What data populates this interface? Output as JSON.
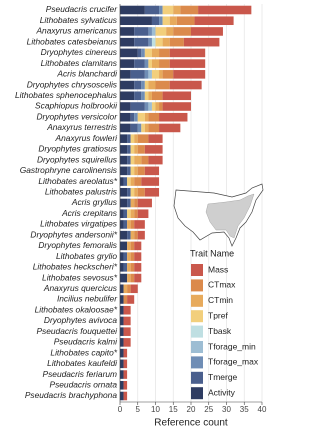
{
  "chart_data": {
    "type": "stacked_barh",
    "x_label": "Reference count",
    "legend_title": "Trait Name",
    "xlim": [
      0,
      40
    ],
    "xticks": [
      0,
      5,
      10,
      15,
      20,
      25,
      30,
      35,
      40
    ],
    "grid": true,
    "categories": [
      "Pseudacris crucifer",
      "Lithobates sylvaticus",
      "Anaxyrus americanus",
      "Lithobates catesbeianus",
      "Dryophytes cinereus",
      "Lithobates clamitans",
      "Acris blanchardi",
      "Dryophytes chrysoscelis",
      "Lithobates sphenocephalus",
      "Scaphiopus holbrookii",
      "Dryophytes versicolor",
      "Anaxyrus terrestris",
      "Anaxyrus fowleri",
      "Dryophytes gratiosus",
      "Dryophytes squirellus",
      "Gastrophryne carolinensis",
      "Lithobates areolatus*",
      "Lithobates palustris",
      "Acris gryllus",
      "Acris crepitans",
      "Lithobates virgatipes",
      "Dryophytes andersonii*",
      "Dryophytes femoralis",
      "Lithobates grylio",
      "Lithobates heckscheri*",
      "Lithobates sevosus*",
      "Anaxyrus quercicus",
      "Incilius nebulifer",
      "Lithobates okaloosae*",
      "Dryophytes avivoca",
      "Pseudacris fouquettei",
      "Pseudacris kalmi",
      "Lithobates capito*",
      "Lithobates kaufeldi",
      "Pseudacris feriarum",
      "Pseudacris ornata",
      "Pseudacris brachyphona"
    ],
    "series": [
      {
        "name": "Activity",
        "color": "#2e3c62",
        "values": [
          7,
          9,
          4,
          4,
          5,
          4,
          3,
          4,
          4,
          3,
          3,
          3,
          2,
          2,
          2,
          2,
          1,
          2,
          2,
          1,
          1,
          2,
          2,
          1,
          1,
          2,
          1,
          1,
          1,
          1,
          1,
          1,
          1,
          1,
          1,
          1,
          1
        ]
      },
      {
        "name": "Tmerge",
        "color": "#4a5f8d",
        "values": [
          4,
          2,
          4,
          4,
          1,
          3,
          4,
          2,
          2,
          4,
          1,
          2,
          1,
          1,
          1,
          1,
          1,
          1,
          1,
          1,
          1,
          1,
          0,
          1,
          1,
          0,
          0,
          0,
          0,
          0,
          0,
          0,
          0,
          0,
          0,
          0,
          0
        ]
      },
      {
        "name": "Tforage_max",
        "color": "#6f8db5",
        "values": [
          1,
          1,
          1,
          1,
          1,
          1,
          1,
          1,
          1,
          1,
          1,
          1,
          0,
          0,
          0,
          0,
          0,
          0,
          0,
          0,
          0,
          0,
          0,
          0,
          0,
          0,
          0,
          0,
          0,
          0,
          0,
          0,
          0,
          0,
          0,
          0,
          0
        ]
      },
      {
        "name": "Tforage_min",
        "color": "#9dbdd3",
        "values": [
          0,
          0,
          1,
          0,
          0,
          0,
          1,
          0,
          0,
          1,
          0,
          0,
          0,
          0,
          0,
          0,
          0,
          0,
          0,
          0,
          0,
          0,
          0,
          0,
          0,
          0,
          0,
          0,
          0,
          0,
          0,
          0,
          0,
          0,
          0,
          0,
          0
        ]
      },
      {
        "name": "Tbask",
        "color": "#bfdfe2",
        "values": [
          0,
          0,
          0,
          1,
          0,
          0,
          0,
          0,
          0,
          0,
          0,
          0,
          0,
          0,
          0,
          0,
          0,
          0,
          0,
          0,
          0,
          0,
          0,
          0,
          0,
          0,
          0,
          0,
          0,
          0,
          0,
          0,
          0,
          0,
          0,
          0,
          0
        ]
      },
      {
        "name": "Tpref",
        "color": "#f2cf7c",
        "values": [
          3,
          2,
          3,
          2,
          2,
          1,
          2,
          1,
          1,
          1,
          2,
          1,
          1,
          1,
          1,
          1,
          1,
          1,
          0,
          1,
          0,
          0,
          0,
          0,
          0,
          0,
          0,
          0,
          0,
          0,
          0,
          0,
          0,
          0,
          0,
          0,
          0
        ]
      },
      {
        "name": "CTmin",
        "color": "#e7aa5c",
        "values": [
          2,
          2,
          2,
          2,
          2,
          2,
          1,
          2,
          1,
          1,
          1,
          1,
          1,
          1,
          2,
          1,
          1,
          1,
          1,
          1,
          1,
          1,
          1,
          1,
          1,
          1,
          1,
          0,
          0,
          0,
          0,
          0,
          0,
          0,
          0,
          0,
          0
        ]
      },
      {
        "name": "CTmax",
        "color": "#db8a4c",
        "values": [
          5,
          5,
          5,
          4,
          3,
          3,
          3,
          4,
          3,
          1,
          3,
          3,
          3,
          2,
          2,
          2,
          2,
          2,
          1,
          1,
          1,
          1,
          1,
          1,
          1,
          1,
          1,
          1,
          0,
          0,
          0,
          0,
          0,
          0,
          0,
          0,
          0
        ]
      },
      {
        "name": "Mass",
        "color": "#c9574b",
        "values": [
          15,
          11,
          9,
          10,
          10,
          10,
          9,
          9,
          8,
          8,
          8,
          6,
          4,
          5,
          4,
          4,
          5,
          4,
          4,
          3,
          3,
          2,
          2,
          2,
          2,
          2,
          2,
          2,
          2,
          2,
          2,
          2,
          1,
          1,
          1,
          1,
          1
        ]
      }
    ]
  }
}
